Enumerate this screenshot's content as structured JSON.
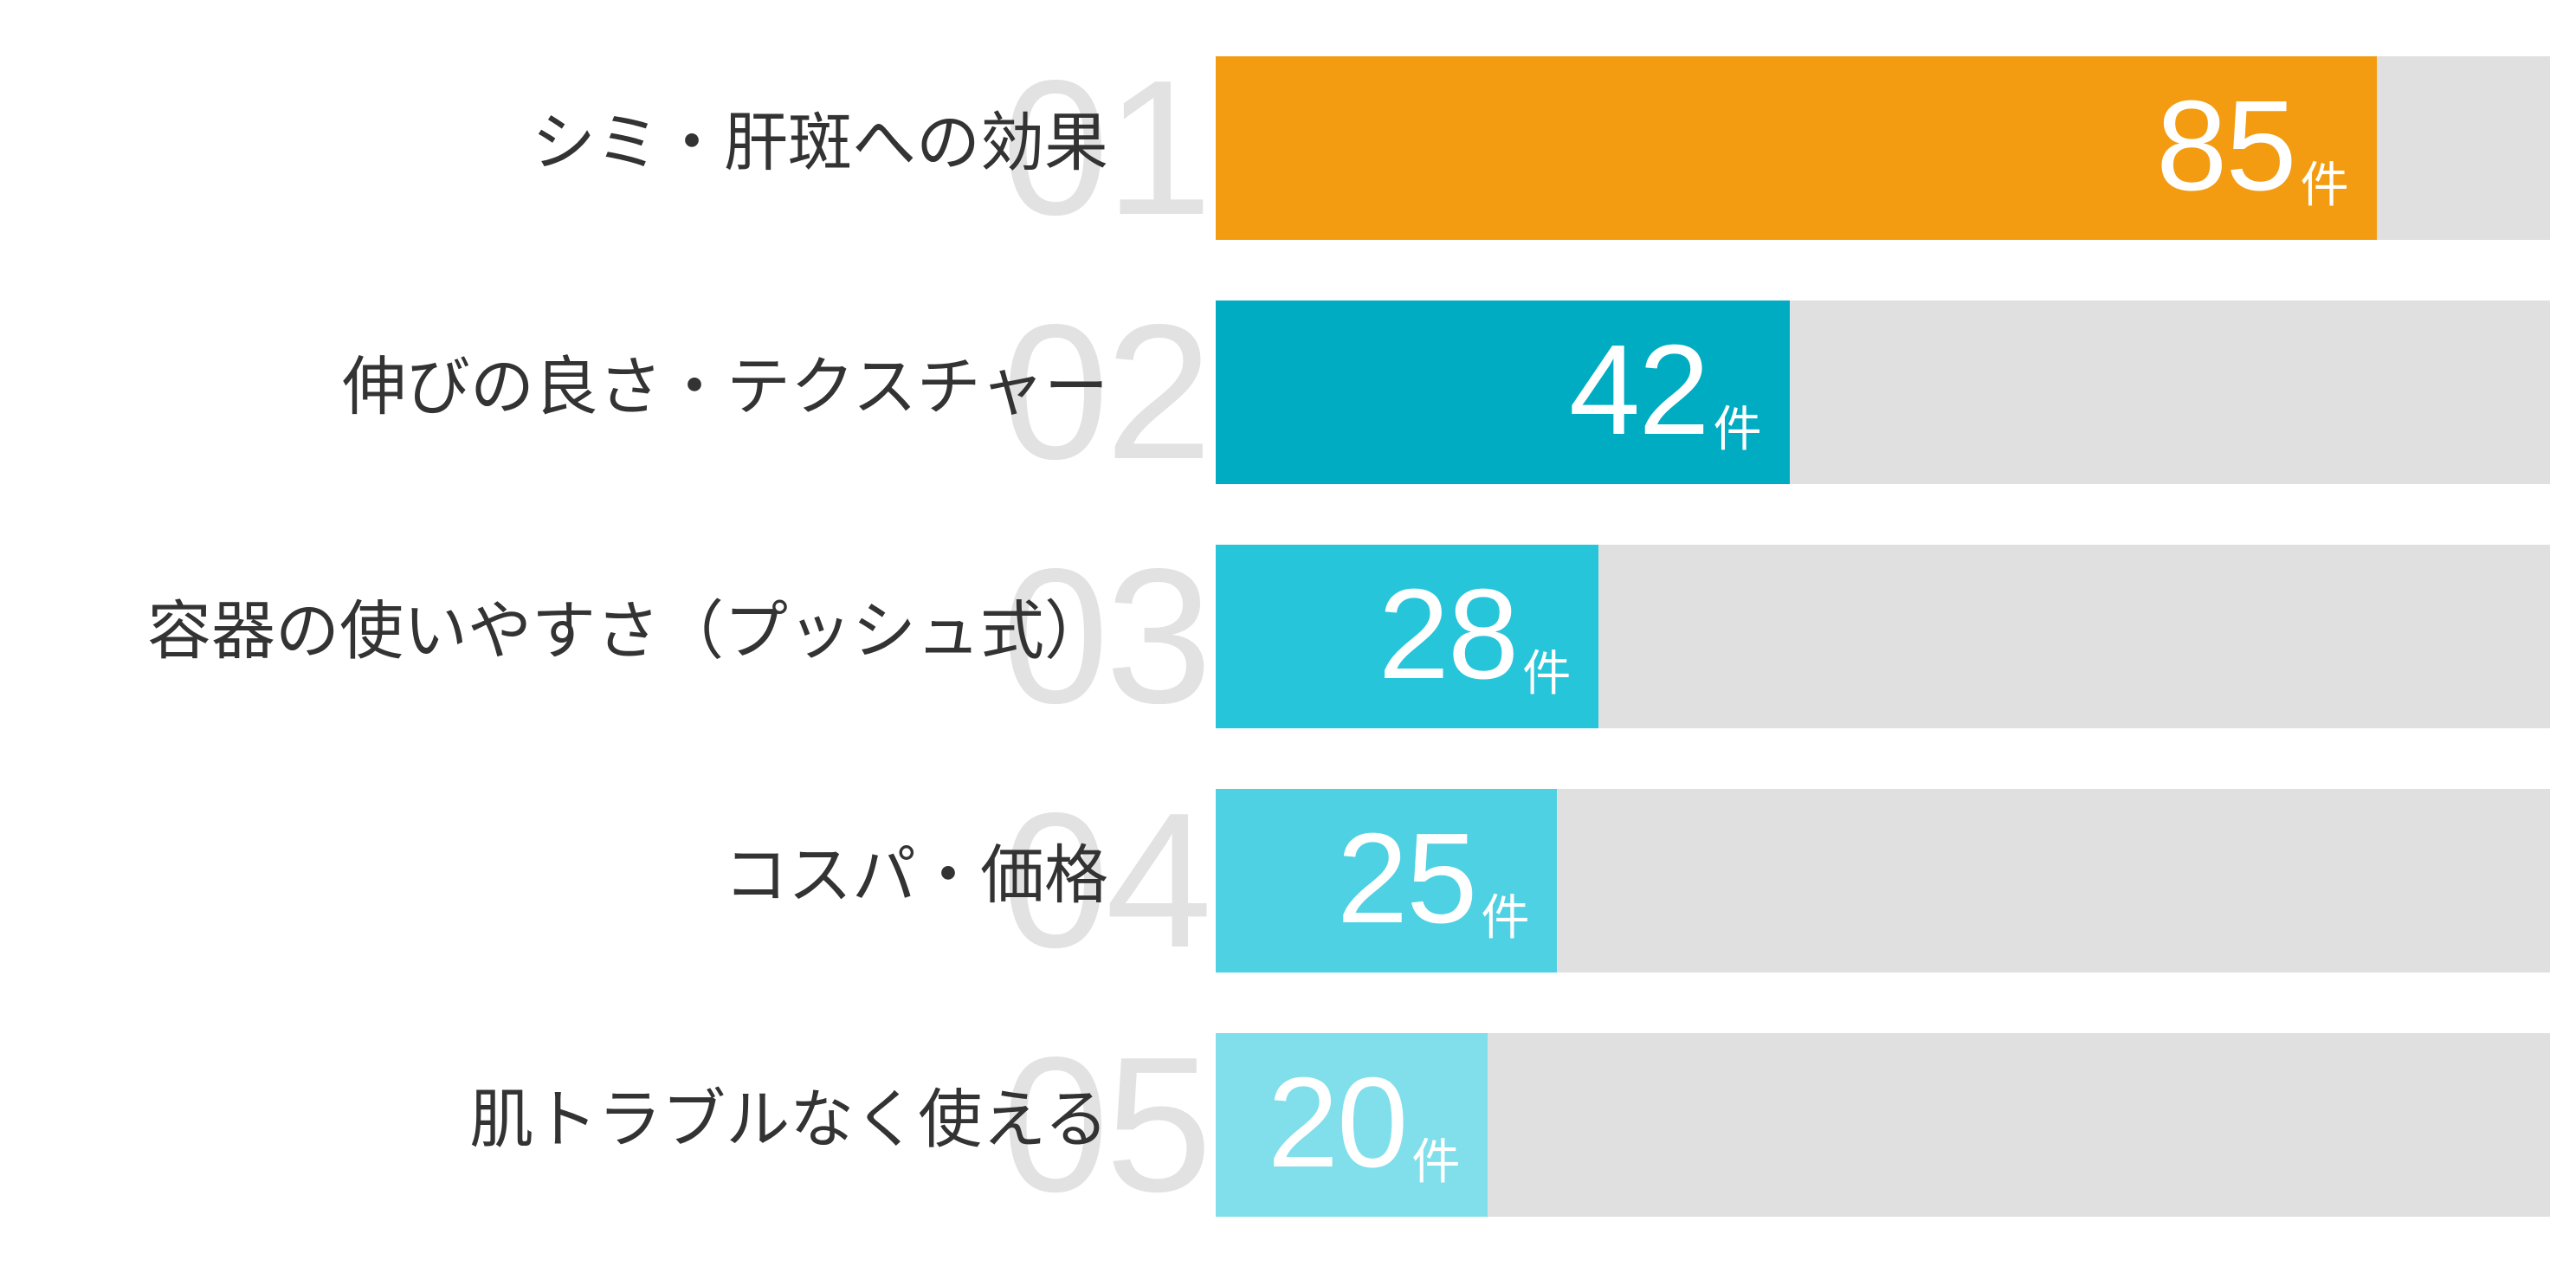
{
  "chart_data": {
    "type": "bar",
    "orientation": "horizontal",
    "title": "",
    "xlabel": "",
    "ylabel": "",
    "unit": "件",
    "categories": [
      "シミ・肝斑への効果",
      "伸びの良さ・テクスチャー",
      "容器の使いやすさ（プッシュ式）",
      "コスパ・価格",
      "肌トラブルなく使える"
    ],
    "values": [
      85,
      42,
      28,
      25,
      20
    ],
    "ranks": [
      "01",
      "02",
      "03",
      "04",
      "05"
    ],
    "xlim": [
      0,
      98
    ],
    "grid": false,
    "legend": "none"
  },
  "rows": [
    {
      "rank": "01",
      "label": "シミ・肝斑への効果",
      "value": "85",
      "unit": "件",
      "color": "#f39c12",
      "fill_percent": 87.0
    },
    {
      "rank": "02",
      "label": "伸びの良さ・テクスチャー",
      "value": "42",
      "unit": "件",
      "color": "#00acc2",
      "fill_percent": 43.0
    },
    {
      "rank": "03",
      "label": "容器の使いやすさ（プッシュ式）",
      "value": "28",
      "unit": "件",
      "color": "#26c5d9",
      "fill_percent": 28.7
    },
    {
      "rank": "04",
      "label": "コスパ・価格",
      "value": "25",
      "unit": "件",
      "color": "#4ed1e2",
      "fill_percent": 25.6
    },
    {
      "rank": "05",
      "label": "肌トラブルなく使える",
      "value": "20",
      "unit": "件",
      "color": "#80dfea",
      "fill_percent": 20.4
    }
  ],
  "colors": {
    "track": "#e0e0e0",
    "label_text": "#333333",
    "rank_numeral": "#e2e2e2",
    "value_text": "#ffffff"
  }
}
